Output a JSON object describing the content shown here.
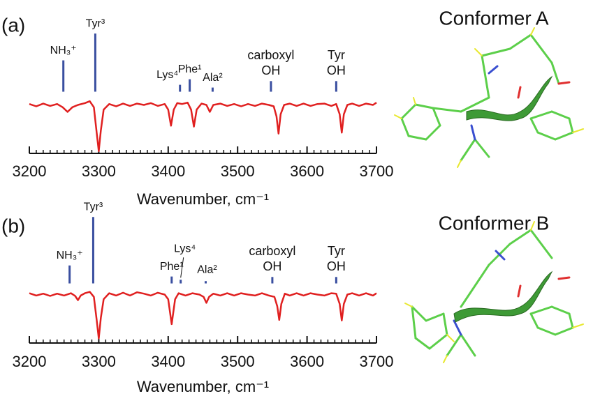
{
  "chart_data": [
    {
      "type": "spectrum",
      "panel_label": "(a)",
      "structure_title": "Conformer A",
      "x_label": "Wavenumber, cm⁻¹",
      "xlim": [
        3200,
        3700
      ],
      "xticks": [
        3200,
        3300,
        3400,
        3500,
        3600,
        3700
      ],
      "minor_tick_interval": 10,
      "ylim": [
        -1.05,
        1.55
      ],
      "series": [
        {
          "color": "#e02020",
          "x": [
            3200,
            3210,
            3220,
            3230,
            3240,
            3248,
            3255,
            3262,
            3270,
            3280,
            3287,
            3293,
            3297,
            3300,
            3303,
            3307,
            3315,
            3325,
            3335,
            3345,
            3355,
            3365,
            3375,
            3385,
            3395,
            3400,
            3404,
            3408,
            3413,
            3420,
            3428,
            3433,
            3437,
            3441,
            3448,
            3455,
            3460,
            3465,
            3475,
            3485,
            3495,
            3505,
            3515,
            3525,
            3535,
            3545,
            3552,
            3556,
            3559,
            3562,
            3567,
            3575,
            3585,
            3595,
            3605,
            3615,
            3625,
            3635,
            3642,
            3647,
            3650,
            3653,
            3658,
            3665,
            3675,
            3685,
            3695,
            3700
          ],
          "values": [
            0.02,
            -0.03,
            0.03,
            -0.02,
            0.02,
            -0.05,
            -0.15,
            -0.05,
            0,
            0.04,
            0.08,
            -0.05,
            -0.6,
            -1,
            -0.55,
            -0.1,
            0.02,
            -0.03,
            0.03,
            -0.02,
            0.03,
            0,
            0.04,
            -0.02,
            0.02,
            -0.1,
            -0.45,
            -0.1,
            0.04,
            0.02,
            0.05,
            -0.1,
            -0.47,
            -0.1,
            0.03,
            0,
            -0.15,
            0,
            0.03,
            -0.02,
            0.02,
            -0.03,
            0.02,
            -0.02,
            0.03,
            0,
            -0.03,
            -0.25,
            -0.62,
            -0.2,
            0,
            0.03,
            -0.02,
            0.03,
            -0.02,
            0.02,
            0.03,
            -0.02,
            0.02,
            -0.2,
            -0.6,
            -0.2,
            0,
            0.03,
            -0.02,
            0.03,
            0,
            0.05
          ]
        }
      ],
      "sticks": {
        "color": "#3a4fa0",
        "x": [
          3249,
          3295,
          3417,
          3431,
          3464,
          3548,
          3642
        ],
        "values": [
          0.68,
          1.26,
          0.15,
          0.27,
          0.09,
          0.23,
          0.23
        ],
        "labels": [
          [
            "NH₃⁺"
          ],
          [
            "Tyr³"
          ],
          [
            "Lys⁴"
          ],
          [
            "Phe¹"
          ],
          [
            "Ala²"
          ],
          [
            "carboxyl",
            "OH"
          ],
          [
            "Tyr",
            "OH"
          ]
        ]
      }
    },
    {
      "type": "spectrum",
      "panel_label": "(b)",
      "structure_title": "Conformer B",
      "x_label": "Wavenumber, cm⁻¹",
      "xlim": [
        3200,
        3700
      ],
      "xticks": [
        3200,
        3300,
        3400,
        3500,
        3600,
        3700
      ],
      "minor_tick_interval": 10,
      "ylim": [
        -1.05,
        1.55
      ],
      "series": [
        {
          "color": "#e02020",
          "x": [
            3200,
            3210,
            3220,
            3230,
            3240,
            3250,
            3260,
            3266,
            3270,
            3274,
            3280,
            3287,
            3293,
            3297,
            3300,
            3303,
            3307,
            3315,
            3325,
            3335,
            3345,
            3355,
            3365,
            3375,
            3385,
            3395,
            3400,
            3405,
            3410,
            3415,
            3425,
            3435,
            3445,
            3451,
            3455,
            3459,
            3465,
            3475,
            3485,
            3495,
            3505,
            3515,
            3525,
            3535,
            3545,
            3553,
            3557,
            3560,
            3563,
            3568,
            3575,
            3585,
            3595,
            3605,
            3615,
            3625,
            3635,
            3642,
            3647,
            3650,
            3653,
            3658,
            3665,
            3675,
            3685,
            3695,
            3700
          ],
          "values": [
            0.03,
            -0.02,
            0.02,
            -0.03,
            0.02,
            -0.02,
            0.03,
            -0.03,
            -0.12,
            -0.02,
            0.03,
            0.06,
            -0.05,
            -0.55,
            -0.95,
            -0.5,
            -0.1,
            0.03,
            -0.02,
            0.04,
            -0.02,
            0.05,
            0.02,
            -0.02,
            0.04,
            0,
            -0.1,
            -0.64,
            -0.1,
            0.03,
            -0.02,
            0.03,
            0,
            -0.05,
            -0.18,
            -0.05,
            0.02,
            -0.02,
            0.03,
            -0.02,
            0.03,
            0,
            -0.02,
            0.03,
            -0.02,
            -0.05,
            -0.25,
            -0.55,
            -0.2,
            0.02,
            -0.02,
            0.03,
            -0.02,
            0.03,
            0,
            -0.02,
            0.03,
            0.02,
            -0.2,
            -0.56,
            -0.2,
            0,
            0.03,
            -0.02,
            0.03,
            -0.02,
            0.03
          ]
        }
      ],
      "sticks": {
        "color": "#3a4fa0",
        "x": [
          3258,
          3292,
          3405,
          3418,
          3454,
          3550,
          3642
        ],
        "values": [
          0.39,
          1.44,
          0.15,
          0.08,
          0.05,
          0.14,
          0.14
        ],
        "labels": [
          [
            "NH₃⁺"
          ],
          [
            "Tyr³"
          ],
          [
            "Phe¹"
          ],
          [
            "Lys⁴"
          ],
          [
            "Ala²"
          ],
          [
            "carboxyl",
            "OH"
          ],
          [
            "Tyr",
            "OH"
          ]
        ]
      }
    }
  ]
}
